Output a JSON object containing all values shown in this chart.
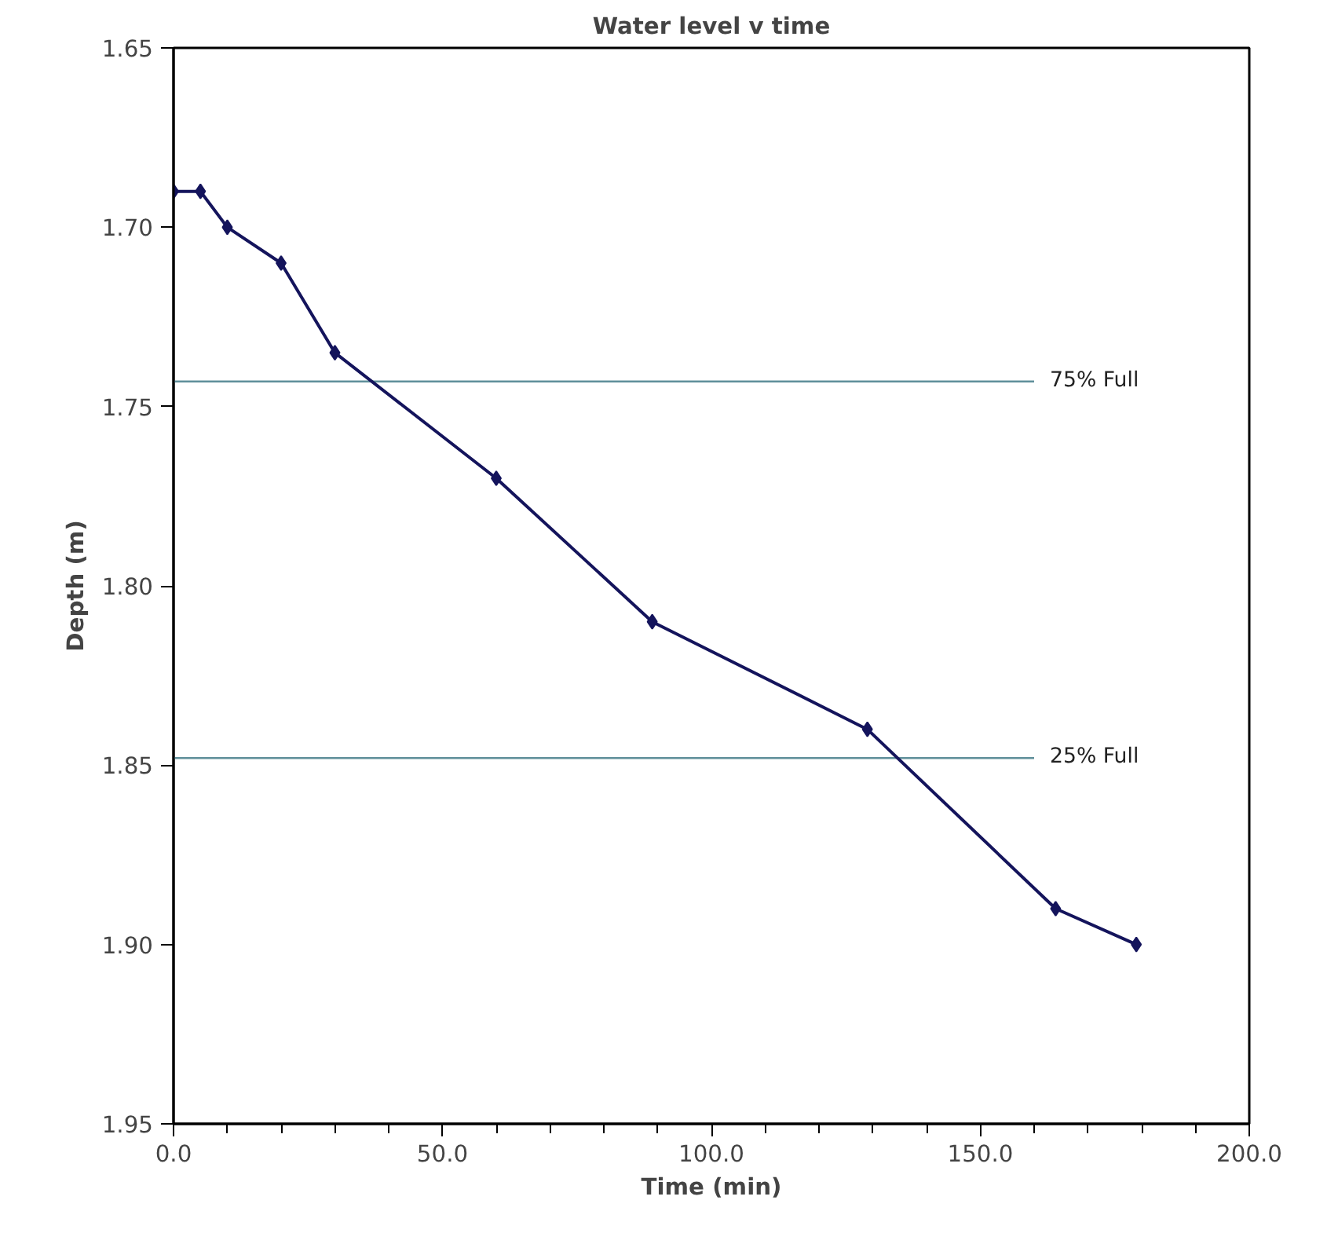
{
  "chart_data": {
    "type": "line",
    "title": "Water level v time",
    "xlabel": "Time (min)",
    "ylabel": "Depth (m)",
    "x": [
      0,
      5,
      10,
      20,
      30,
      60,
      89,
      129,
      164,
      179
    ],
    "series": [
      {
        "color": "#14145c",
        "values": [
          1.69,
          1.69,
          1.7,
          1.71,
          1.735,
          1.77,
          1.81,
          1.84,
          1.89,
          1.9
        ]
      }
    ],
    "marker": "diamond",
    "line_style": "solid",
    "grid": false,
    "xlim": [
      0,
      200
    ],
    "xticks": [
      {
        "value": 0,
        "label": "0.0"
      },
      {
        "value": 50,
        "label": "50.0"
      },
      {
        "value": 100,
        "label": "100.0"
      },
      {
        "value": 150,
        "label": "150.0"
      },
      {
        "value": 200,
        "label": "200.0"
      }
    ],
    "ylim": [
      1.95,
      1.65
    ],
    "yticks": [
      1.65,
      {
        "value": 1.7,
        "label": "1.70"
      },
      1.75,
      {
        "value": 1.8,
        "label": "1.80"
      },
      1.85,
      {
        "value": 1.9,
        "label": "1.90"
      },
      1.95
    ],
    "ref_lines": [
      {
        "axis": "y",
        "value": 1.743,
        "label": "75% Full",
        "color": "#5f8f9a"
      },
      {
        "axis": "y",
        "value": 1.848,
        "label": "25% Full",
        "color": "#5f8f9a"
      }
    ]
  }
}
